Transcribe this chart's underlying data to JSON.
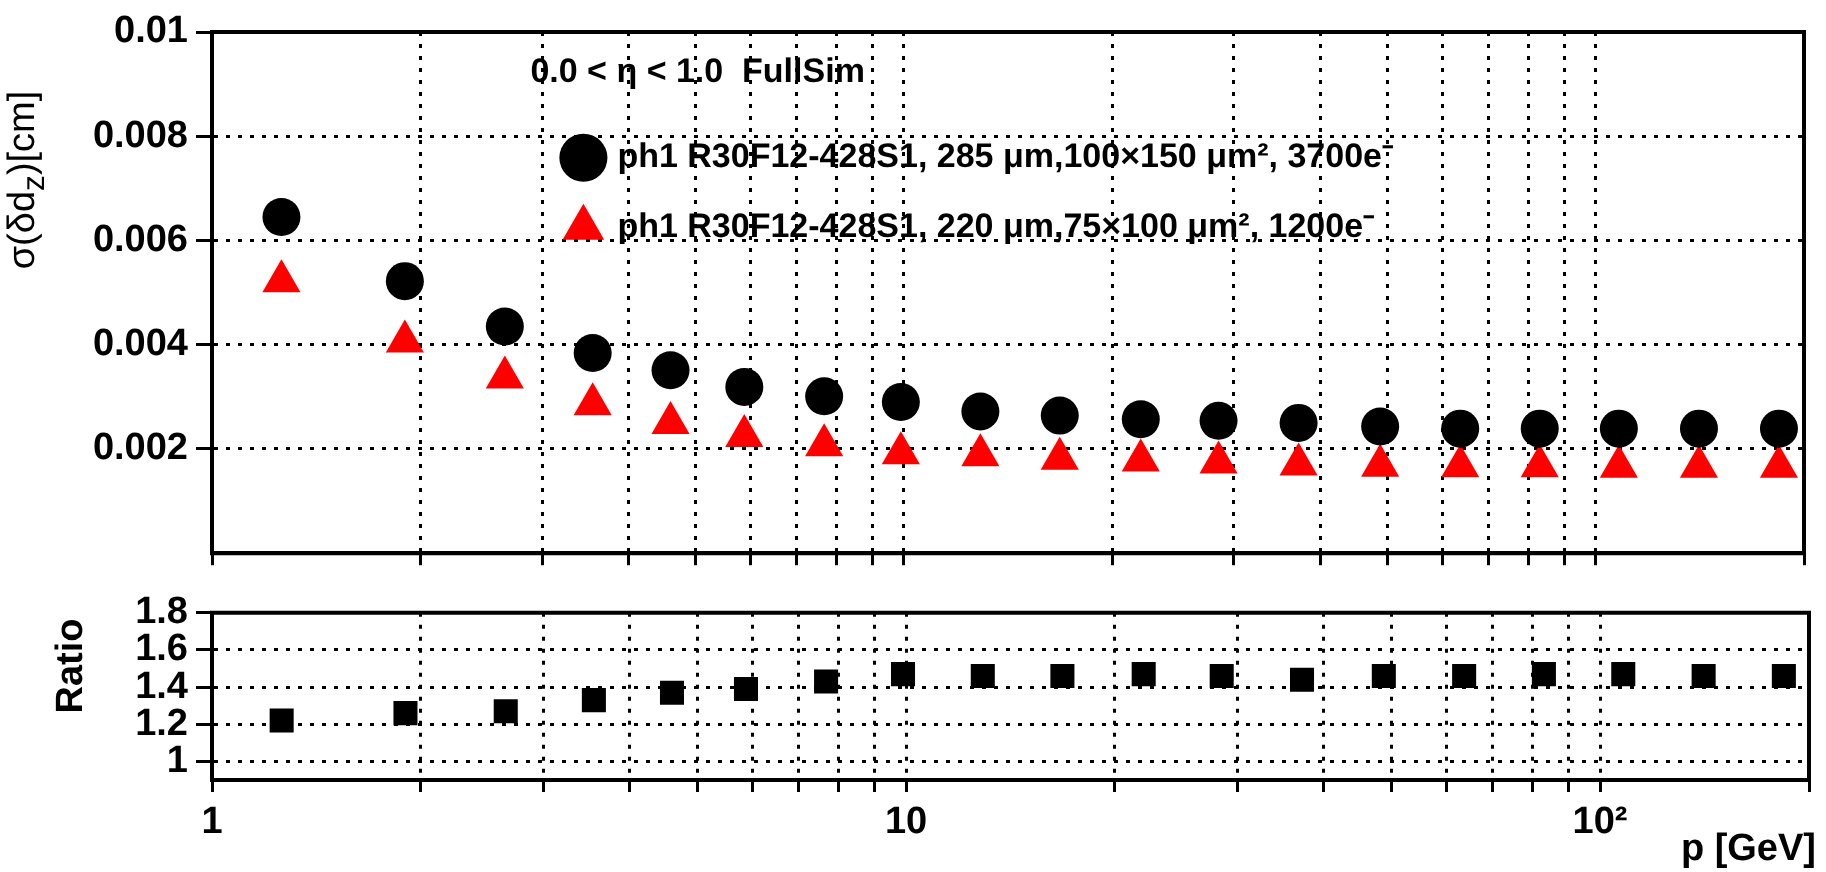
{
  "chart_data": [
    {
      "type": "scatter",
      "ylabel": "σ(δd$_{z}$)[cm]",
      "legend_title": "0.0 < η < 1.0  FullSim",
      "legend": "top right",
      "log": "x",
      "grid": true,
      "tick_labels": "y",
      "x": [
        1.26,
        1.9,
        2.65,
        3.55,
        4.6,
        5.88,
        7.67,
        9.9,
        12.9,
        16.8,
        22,
        28.5,
        37.2,
        48.8,
        63.7,
        83,
        108,
        141,
        184
      ],
      "xlim": [
        1,
        200
      ],
      "xticks": [
        {
          "value": 1,
          "label": null
        },
        {
          "value": 2,
          "label": null
        },
        {
          "value": 3,
          "label": null
        },
        {
          "value": 4,
          "label": null
        },
        {
          "value": 5,
          "label": null
        },
        {
          "value": 6,
          "label": null
        },
        {
          "value": 7,
          "label": null
        },
        {
          "value": 8,
          "label": null
        },
        {
          "value": 9,
          "label": null
        },
        {
          "value": 10,
          "label": null
        },
        {
          "value": 20,
          "label": null
        },
        {
          "value": 30,
          "label": null
        },
        {
          "value": 40,
          "label": null
        },
        {
          "value": 50,
          "label": null
        },
        {
          "value": 60,
          "label": null
        },
        {
          "value": 70,
          "label": null
        },
        {
          "value": 80,
          "label": null
        },
        {
          "value": 90,
          "label": null
        },
        {
          "value": 100,
          "label": null
        },
        {
          "value": 200,
          "label": null
        }
      ],
      "ylim": [
        0,
        0.01
      ],
      "yticks": [
        0.002,
        0.004,
        0.006,
        0.008,
        0.01
      ],
      "series": [
        {
          "name": "ph1 R30F12-428S1, 285 μm,100×150 μm², 3700e⁻",
          "color": "#000000",
          "marker": "circle",
          "values": [
            0.00645,
            0.00522,
            0.00435,
            0.00384,
            0.00351,
            0.00319,
            0.00301,
            0.0029,
            0.00272,
            0.00264,
            0.00257,
            0.00254,
            0.0025,
            0.00243,
            0.00239,
            0.00239,
            0.00239,
            0.00239,
            0.00239
          ]
        },
        {
          "name": "ph1 R30F12-428S1, 220 μm,75×100 μm², 1200e⁻",
          "color": "#ff0000",
          "marker": "triangle",
          "values": [
            0.00522,
            0.00406,
            0.00337,
            0.00286,
            0.0025,
            0.00225,
            0.00207,
            0.00192,
            0.00188,
            0.00181,
            0.00178,
            0.00174,
            0.0017,
            0.00168,
            0.00167,
            0.00167,
            0.00166,
            0.00166,
            0.00166
          ]
        }
      ]
    },
    {
      "type": "scatter",
      "ylabel": "Ratio",
      "xlabel": "p [GeV]",
      "log": "x",
      "grid": true,
      "marker": "square",
      "x": [
        1.26,
        1.9,
        2.65,
        3.55,
        4.6,
        5.88,
        7.67,
        9.9,
        12.9,
        16.8,
        22,
        28.5,
        37.2,
        48.8,
        63.7,
        83,
        108,
        141,
        184
      ],
      "xlim": [
        1,
        200
      ],
      "xticks": [
        {
          "value": 1,
          "label": "1"
        },
        {
          "value": 2,
          "label": null
        },
        {
          "value": 3,
          "label": null
        },
        {
          "value": 4,
          "label": null
        },
        {
          "value": 5,
          "label": null
        },
        {
          "value": 6,
          "label": null
        },
        {
          "value": 7,
          "label": null
        },
        {
          "value": 8,
          "label": null
        },
        {
          "value": 9,
          "label": null
        },
        {
          "value": 10,
          "label": "10"
        },
        {
          "value": 20,
          "label": null
        },
        {
          "value": 30,
          "label": null
        },
        {
          "value": 40,
          "label": null
        },
        {
          "value": 50,
          "label": null
        },
        {
          "value": 60,
          "label": null
        },
        {
          "value": 70,
          "label": null
        },
        {
          "value": 80,
          "label": null
        },
        {
          "value": 90,
          "label": null
        },
        {
          "value": 100,
          "label": "10²"
        },
        {
          "value": 200,
          "label": null
        }
      ],
      "ylim": [
        0.9,
        1.8
      ],
      "yticks": [
        1,
        1.2,
        1.4,
        1.6,
        1.8
      ],
      "series": [
        {
          "color": "#000000",
          "values": [
            1.22,
            1.26,
            1.27,
            1.33,
            1.37,
            1.39,
            1.43,
            1.47,
            1.46,
            1.46,
            1.47,
            1.46,
            1.44,
            1.46,
            1.46,
            1.47,
            1.47,
            1.46,
            1.46
          ]
        }
      ]
    }
  ]
}
